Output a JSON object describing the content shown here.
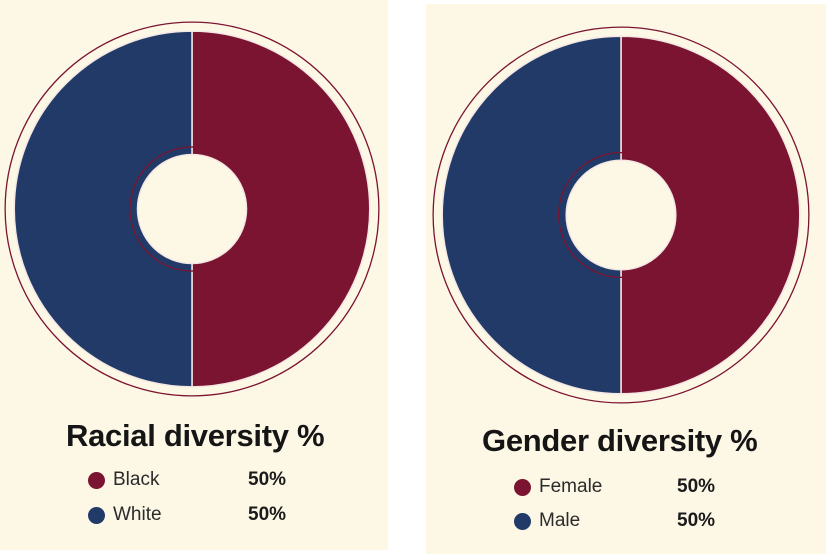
{
  "chart_data": [
    {
      "type": "pie",
      "title": "Racial diversity %",
      "categories": [
        "Black",
        "White"
      ],
      "values": [
        50,
        50
      ],
      "value_labels": [
        "50%",
        "50%"
      ],
      "colors": [
        "#7b1430",
        "#213a68"
      ]
    },
    {
      "type": "pie",
      "title": "Gender diversity %",
      "categories": [
        "Female",
        "Male"
      ],
      "values": [
        50,
        50
      ],
      "value_labels": [
        "50%",
        "50%"
      ],
      "colors": [
        "#7b1430",
        "#213a68"
      ]
    }
  ],
  "colors": {
    "panel_background": "#fdf7e6",
    "ring_outline": "#7b1430"
  }
}
